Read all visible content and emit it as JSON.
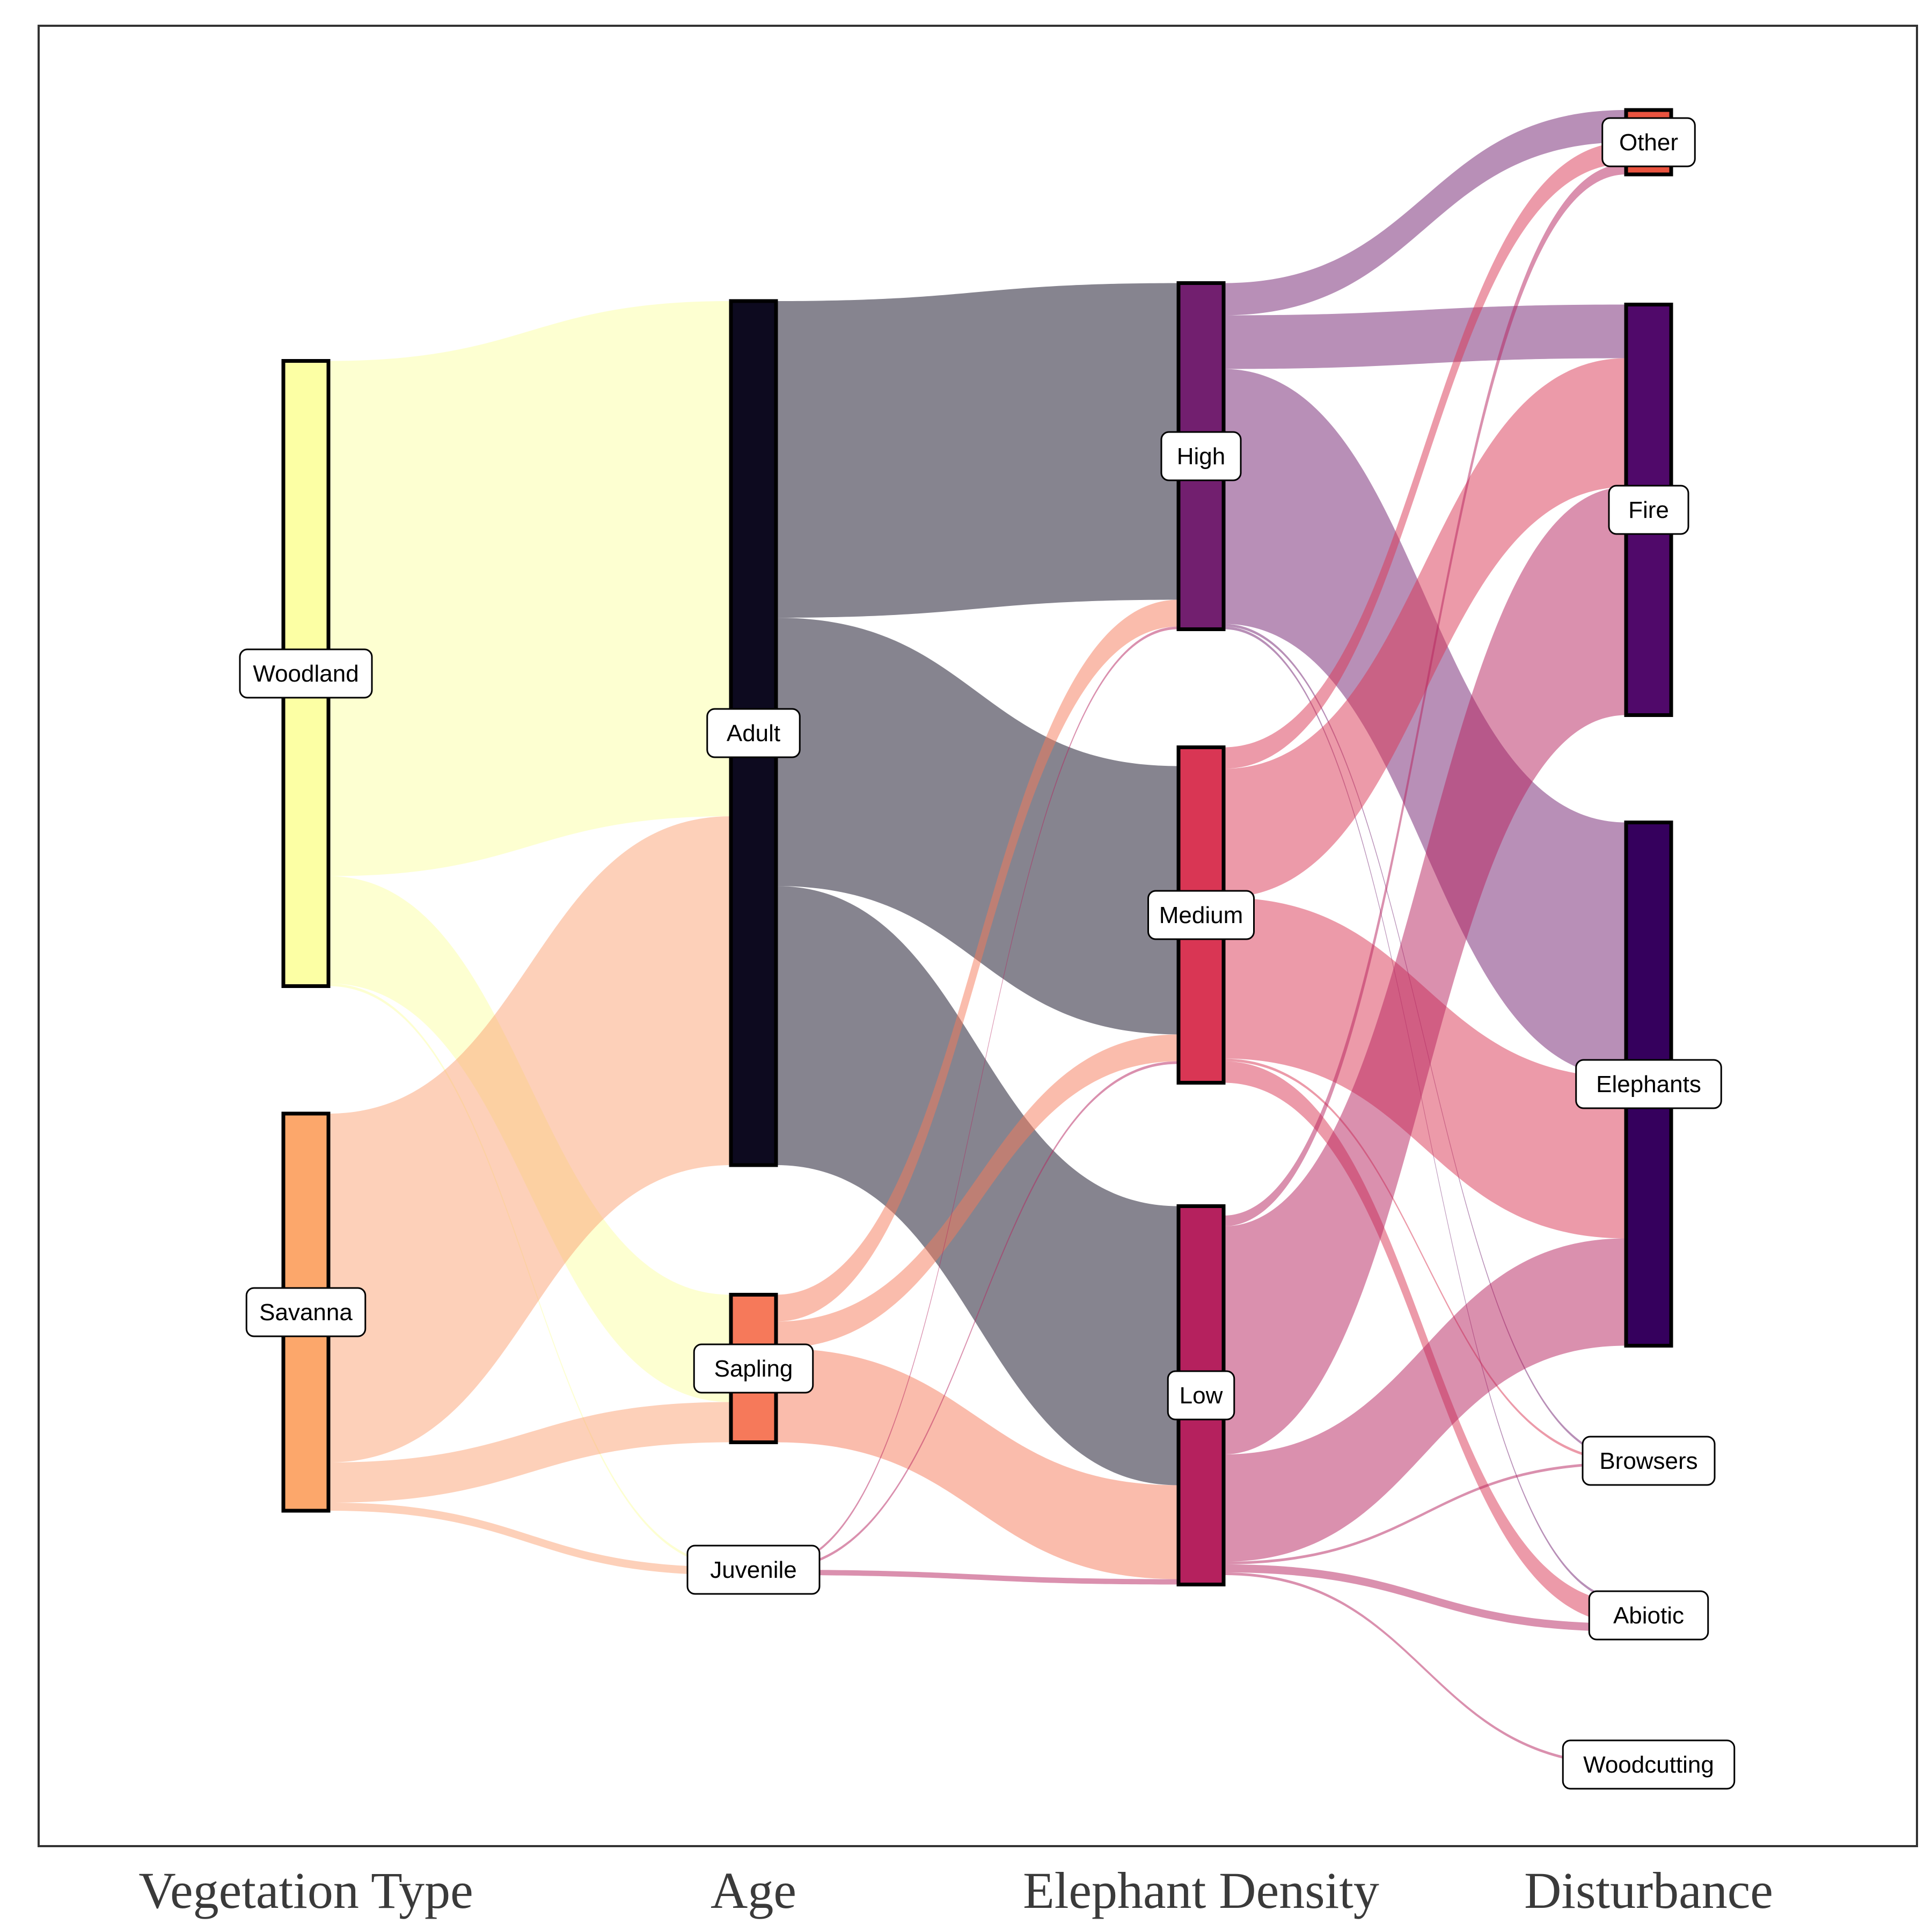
{
  "chart_data": {
    "type": "sankey",
    "axes": [
      "Vegetation Type",
      "Age",
      "Elephant Density",
      "Disturbance"
    ],
    "nodes": [
      {
        "id": "woodland",
        "label": "Woodland",
        "axis": 0,
        "color": "#fcffa4",
        "bar": true
      },
      {
        "id": "savanna",
        "label": "Savanna",
        "axis": 0,
        "color": "#fca76b",
        "bar": true
      },
      {
        "id": "adult",
        "label": "Adult",
        "axis": 1,
        "color": "#0d0a1f",
        "bar": true
      },
      {
        "id": "sapling",
        "label": "Sapling",
        "axis": 1,
        "color": "#f6795a",
        "bar": true
      },
      {
        "id": "juvenile",
        "label": "Juvenile",
        "axis": 1,
        "color": "#fbb597",
        "bar": false
      },
      {
        "id": "high",
        "label": "High",
        "axis": 2,
        "color": "#721f6f",
        "bar": true
      },
      {
        "id": "medium",
        "label": "Medium",
        "axis": 2,
        "color": "#d93654",
        "bar": true
      },
      {
        "id": "low",
        "label": "Low",
        "axis": 2,
        "color": "#b5215e",
        "bar": true
      },
      {
        "id": "other",
        "label": "Other",
        "axis": 3,
        "color": "#e9533f",
        "bar": true
      },
      {
        "id": "fire",
        "label": "Fire",
        "axis": 3,
        "color": "#50096a",
        "bar": true
      },
      {
        "id": "elephants",
        "label": "Elephants",
        "axis": 3,
        "color": "#35005d",
        "bar": true
      },
      {
        "id": "browsers",
        "label": "Browsers",
        "axis": 3,
        "color": "#8a3a82",
        "bar": false
      },
      {
        "id": "abiotic",
        "label": "Abiotic",
        "axis": 3,
        "color": "#c03a6a",
        "bar": false
      },
      {
        "id": "woodcutting",
        "label": "Woodcutting",
        "axis": 3,
        "color": "#c03a6a",
        "bar": false
      }
    ],
    "links": [
      {
        "source": "woodland",
        "target": "adult",
        "value": 192,
        "color": "#fcffa4"
      },
      {
        "source": "woodland",
        "target": "sapling",
        "value": 40,
        "color": "#fcffa4"
      },
      {
        "source": "woodland",
        "target": "juvenile",
        "value": 1,
        "color": "#fcffa4"
      },
      {
        "source": "savanna",
        "target": "adult",
        "value": 130,
        "color": "#fba173"
      },
      {
        "source": "savanna",
        "target": "sapling",
        "value": 15,
        "color": "#fba173"
      },
      {
        "source": "savanna",
        "target": "juvenile",
        "value": 3,
        "color": "#fba173"
      },
      {
        "source": "adult",
        "target": "high",
        "value": 118,
        "color": "#0d0a1f"
      },
      {
        "source": "adult",
        "target": "medium",
        "value": 100,
        "color": "#0d0a1f"
      },
      {
        "source": "adult",
        "target": "low",
        "value": 104,
        "color": "#0d0a1f"
      },
      {
        "source": "sapling",
        "target": "high",
        "value": 10,
        "color": "#f6795a"
      },
      {
        "source": "sapling",
        "target": "medium",
        "value": 10,
        "color": "#f6795a"
      },
      {
        "source": "sapling",
        "target": "low",
        "value": 35,
        "color": "#f6795a"
      },
      {
        "source": "juvenile",
        "target": "high",
        "value": 1,
        "color": "#b5215e"
      },
      {
        "source": "juvenile",
        "target": "medium",
        "value": 1,
        "color": "#b5215e"
      },
      {
        "source": "juvenile",
        "target": "low",
        "value": 2,
        "color": "#b5215e"
      },
      {
        "source": "high",
        "target": "other",
        "value": 12,
        "color": "#721f6f"
      },
      {
        "source": "high",
        "target": "fire",
        "value": 20,
        "color": "#721f6f"
      },
      {
        "source": "high",
        "target": "elephants",
        "value": 95,
        "color": "#721f6f"
      },
      {
        "source": "high",
        "target": "browsers",
        "value": 1,
        "color": "#721f6f"
      },
      {
        "source": "high",
        "target": "abiotic",
        "value": 1,
        "color": "#721f6f"
      },
      {
        "source": "medium",
        "target": "other",
        "value": 8,
        "color": "#d93654"
      },
      {
        "source": "medium",
        "target": "fire",
        "value": 48,
        "color": "#d93654"
      },
      {
        "source": "medium",
        "target": "elephants",
        "value": 60,
        "color": "#d93654"
      },
      {
        "source": "medium",
        "target": "browsers",
        "value": 1,
        "color": "#d93654"
      },
      {
        "source": "medium",
        "target": "abiotic",
        "value": 8,
        "color": "#d93654"
      },
      {
        "source": "low",
        "target": "other",
        "value": 4,
        "color": "#b5215e"
      },
      {
        "source": "low",
        "target": "fire",
        "value": 85,
        "color": "#b5215e"
      },
      {
        "source": "low",
        "target": "elephants",
        "value": 40,
        "color": "#b5215e"
      },
      {
        "source": "low",
        "target": "browsers",
        "value": 1,
        "color": "#b5215e"
      },
      {
        "source": "low",
        "target": "abiotic",
        "value": 3,
        "color": "#b5215e"
      },
      {
        "source": "low",
        "target": "woodcutting",
        "value": 1,
        "color": "#b5215e"
      }
    ]
  }
}
